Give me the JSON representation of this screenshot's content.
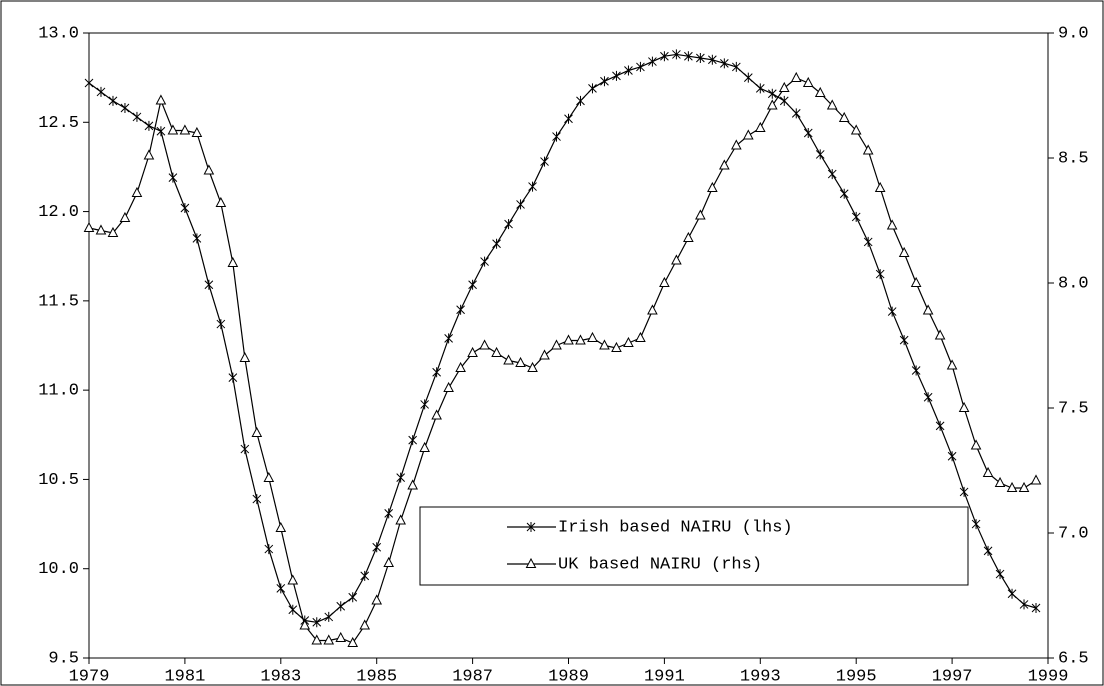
{
  "chart_data": {
    "type": "line",
    "x": [
      1979,
      1979.25,
      1979.5,
      1979.75,
      1980,
      1980.25,
      1980.5,
      1980.75,
      1981,
      1981.25,
      1981.5,
      1981.75,
      1982,
      1982.25,
      1982.5,
      1982.75,
      1983,
      1983.25,
      1983.5,
      1983.75,
      1984,
      1984.25,
      1984.5,
      1984.75,
      1985,
      1985.25,
      1985.5,
      1985.75,
      1986,
      1986.25,
      1986.5,
      1986.75,
      1987,
      1987.25,
      1987.5,
      1987.75,
      1988,
      1988.25,
      1988.5,
      1988.75,
      1989,
      1989.25,
      1989.5,
      1989.75,
      1990,
      1990.25,
      1990.5,
      1990.75,
      1991,
      1991.25,
      1991.5,
      1991.75,
      1992,
      1992.25,
      1992.5,
      1992.75,
      1993,
      1993.25,
      1993.5,
      1993.75,
      1994,
      1994.25,
      1994.5,
      1994.75,
      1995,
      1995.25,
      1995.5,
      1995.75,
      1996,
      1996.25,
      1996.5,
      1996.75,
      1997,
      1997.25,
      1997.5,
      1997.75,
      1998,
      1998.25,
      1998.5,
      1998.75
    ],
    "series": [
      {
        "name": "Irish based NAIRU (lhs)",
        "color": "#000000",
        "marker": "star",
        "values": [
          12.72,
          12.67,
          12.62,
          12.58,
          12.53,
          12.48,
          12.45,
          12.19,
          12.02,
          11.85,
          11.59,
          11.37,
          11.07,
          10.67,
          10.39,
          10.11,
          9.89,
          9.77,
          9.71,
          9.7,
          9.73,
          9.79,
          9.84,
          9.96,
          10.12,
          10.31,
          10.51,
          10.72,
          10.92,
          11.1,
          11.29,
          11.45,
          11.59,
          11.72,
          11.82,
          11.93,
          12.04,
          12.14,
          12.28,
          12.42,
          12.52,
          12.62,
          12.69,
          12.73,
          12.76,
          12.79,
          12.81,
          12.84,
          12.87,
          12.88,
          12.87,
          12.86,
          12.85,
          12.83,
          12.81,
          12.75,
          12.69,
          12.66,
          12.62,
          12.55,
          12.44,
          12.32,
          12.21,
          12.1,
          11.97,
          11.83,
          11.65,
          11.44,
          11.28,
          11.11,
          10.96,
          10.8,
          10.63,
          10.43,
          10.25,
          10.1,
          9.97,
          9.86,
          9.8,
          9.78
        ]
      },
      {
        "name": "UK based NAIRU (rhs)",
        "color": "#000000",
        "marker": "triangle",
        "axis": "y2",
        "values": [
          8.22,
          8.21,
          8.2,
          8.26,
          8.36,
          8.51,
          8.73,
          8.61,
          8.61,
          8.6,
          8.45,
          8.32,
          8.08,
          7.7,
          7.4,
          7.22,
          7.02,
          6.81,
          6.63,
          6.57,
          6.57,
          6.58,
          6.56,
          6.63,
          6.73,
          6.88,
          7.05,
          7.19,
          7.34,
          7.47,
          7.58,
          7.66,
          7.72,
          7.75,
          7.72,
          7.69,
          7.68,
          7.66,
          7.71,
          7.75,
          7.77,
          7.77,
          7.78,
          7.75,
          7.74,
          7.76,
          7.78,
          7.89,
          8.0,
          8.09,
          8.18,
          8.27,
          8.38,
          8.47,
          8.55,
          8.59,
          8.62,
          8.71,
          8.78,
          8.82,
          8.8,
          8.76,
          8.71,
          8.66,
          8.61,
          8.53,
          8.38,
          8.23,
          8.12,
          8.0,
          7.89,
          7.79,
          7.67,
          7.5,
          7.35,
          7.24,
          7.2,
          7.18,
          7.18,
          7.21
        ]
      }
    ],
    "xlim": [
      1979,
      1999
    ],
    "xticks": [
      1979,
      1981,
      1983,
      1985,
      1987,
      1989,
      1991,
      1993,
      1995,
      1997,
      1999
    ],
    "ylim": [
      9.5,
      13
    ],
    "yticks": [
      9.5,
      {
        "value": 10,
        "label": "10.0"
      },
      10.5,
      {
        "value": 11,
        "label": "11.0"
      },
      11.5,
      {
        "value": 12,
        "label": "12.0"
      },
      12.5,
      {
        "value": 13,
        "label": "13.0"
      }
    ],
    "y2lim": [
      6.5,
      9
    ],
    "y2ticks": [
      6.5,
      {
        "value": 7,
        "label": "7.0"
      },
      7.5,
      {
        "value": 8,
        "label": "8.0"
      },
      8.5,
      {
        "value": 9,
        "label": "9.0"
      }
    ],
    "legend": "lower-center"
  }
}
